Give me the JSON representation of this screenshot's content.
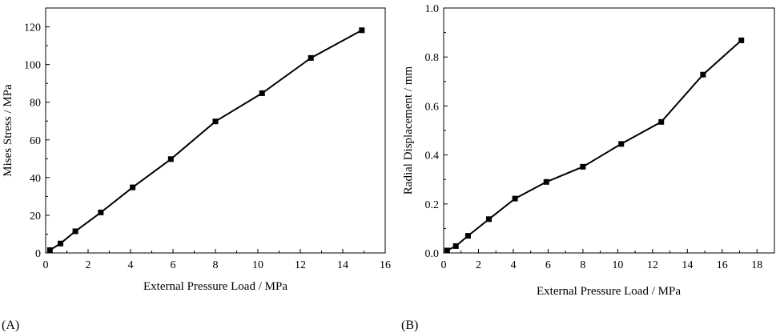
{
  "chart_data": [
    {
      "type": "line",
      "panel_label": "(A)",
      "xlabel": "External Pressure Load / MPa",
      "ylabel": "Mises Stress / MPa",
      "xlim": [
        0,
        16
      ],
      "ylim": [
        0,
        130
      ],
      "xticks": [
        0,
        2,
        4,
        6,
        8,
        10,
        12,
        14,
        16
      ],
      "yticks": [
        0,
        20,
        40,
        60,
        80,
        100,
        120
      ],
      "xtick_labels": [
        "0",
        "2",
        "4",
        "6",
        "8",
        "10",
        "12",
        "14",
        "16"
      ],
      "ytick_labels": [
        "0",
        "20",
        "40",
        "60",
        "80",
        "100",
        "120"
      ],
      "grid": false,
      "marker": "square",
      "color": "#000000",
      "series": [
        {
          "x": [
            0.2,
            0.7,
            1.4,
            2.6,
            4.1,
            5.9,
            8.0,
            10.2,
            12.5,
            14.9
          ],
          "y": [
            1.5,
            5.0,
            11.5,
            21.5,
            34.8,
            49.8,
            69.8,
            84.8,
            103.5,
            118.2
          ]
        }
      ]
    },
    {
      "type": "line",
      "panel_label": "(B)",
      "xlabel": "External Pressure Load / MPa",
      "ylabel": "Radial Displacement / mm",
      "xlim": [
        0,
        19
      ],
      "ylim": [
        0,
        1.0
      ],
      "xticks": [
        0,
        2,
        4,
        6,
        8,
        10,
        12,
        14,
        16,
        18
      ],
      "yticks": [
        0,
        0.2,
        0.4,
        0.6,
        0.8,
        1.0
      ],
      "xtick_labels": [
        "0",
        "2",
        "4",
        "6",
        "8",
        "10",
        "12",
        "14",
        "16",
        "18"
      ],
      "ytick_labels": [
        "0.0",
        "0.2",
        "0.4",
        "0.6",
        "0.8",
        "1.0"
      ],
      "grid": false,
      "marker": "square",
      "color": "#000000",
      "series": [
        {
          "x": [
            0.2,
            0.7,
            1.4,
            2.6,
            4.1,
            5.9,
            8.0,
            10.2,
            12.5,
            14.9,
            17.1
          ],
          "y": [
            0.01,
            0.028,
            0.07,
            0.138,
            0.222,
            0.29,
            0.352,
            0.445,
            0.535,
            0.728,
            0.868
          ]
        }
      ]
    }
  ]
}
